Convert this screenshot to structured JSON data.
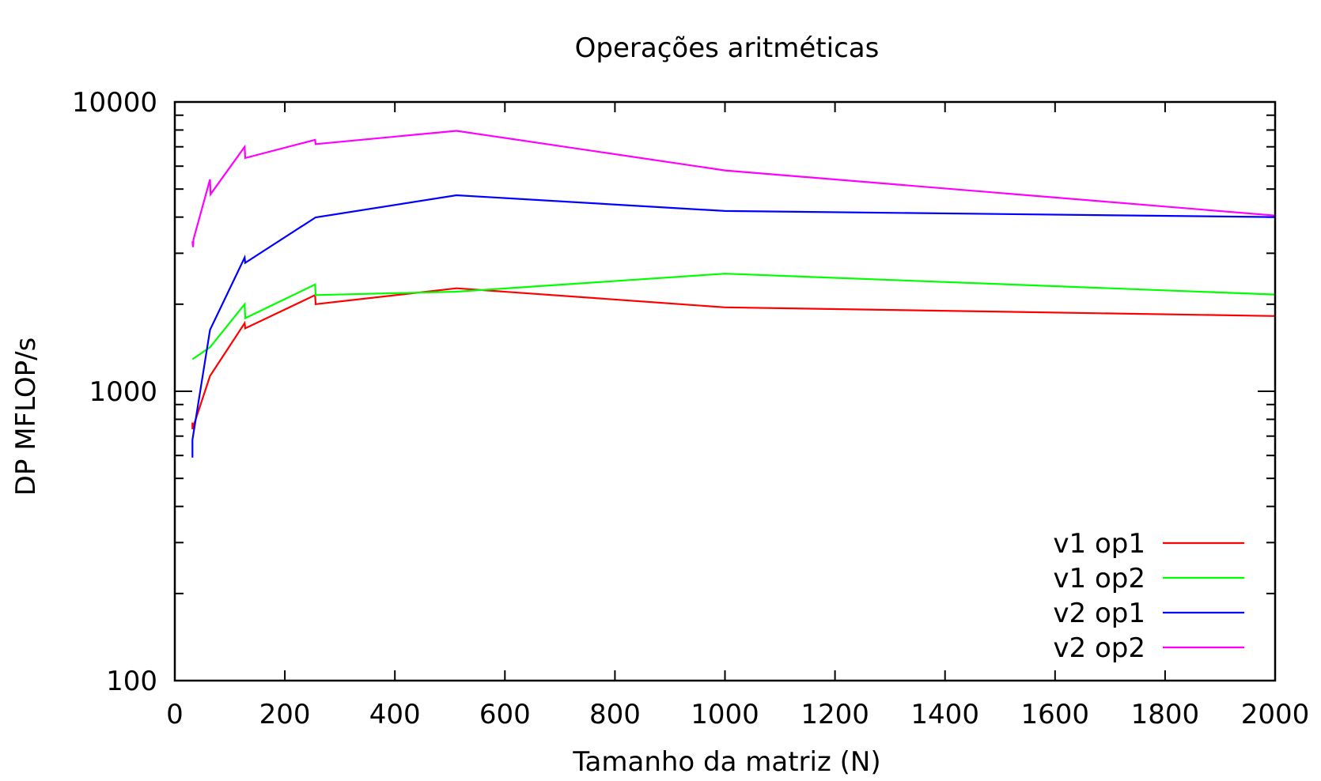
{
  "chart_data": {
    "type": "line",
    "title": "Operações aritméticas",
    "xlabel": "Tamanho da matriz (N)",
    "ylabel": "DP MFLOP/s",
    "xlim": [
      0,
      2000
    ],
    "ylim": [
      100,
      10000
    ],
    "yscale": "log",
    "grid": false,
    "legend_position": "bottom-right",
    "x_ticks": [
      "0",
      "200",
      "400",
      "600",
      "800",
      "1000",
      "1200",
      "1400",
      "1600",
      "1800",
      "2000"
    ],
    "y_ticks": [
      "100",
      "1000",
      "10000"
    ],
    "series": [
      {
        "name": "v1 op1",
        "color": "#ff0000",
        "x": [
          32,
          32,
          64,
          127,
          128,
          255,
          256,
          512,
          1000,
          2000
        ],
        "y": [
          780,
          740,
          1130,
          1720,
          1650,
          2150,
          2000,
          2270,
          1950,
          1820
        ]
      },
      {
        "name": "v1 op2",
        "color": "#00ff00",
        "x": [
          32,
          64,
          127,
          128,
          255,
          256,
          512,
          1000,
          2000
        ],
        "y": [
          1290,
          1420,
          2000,
          1790,
          2340,
          2150,
          2210,
          2550,
          2160
        ]
      },
      {
        "name": "v2 op1",
        "color": "#0000ff",
        "x": [
          32,
          32,
          64,
          127,
          128,
          256,
          512,
          1000,
          2000
        ],
        "y": [
          590,
          680,
          1630,
          2900,
          2780,
          3990,
          4760,
          4200,
          4000
        ]
      },
      {
        "name": "v2 op2",
        "color": "#ff00ff",
        "x": [
          32,
          33,
          34,
          64,
          65,
          127,
          128,
          255,
          256,
          512,
          1000,
          2000
        ],
        "y": [
          3300,
          3150,
          3350,
          5400,
          4800,
          7000,
          6400,
          7400,
          7150,
          7950,
          5800,
          4050
        ]
      }
    ]
  }
}
